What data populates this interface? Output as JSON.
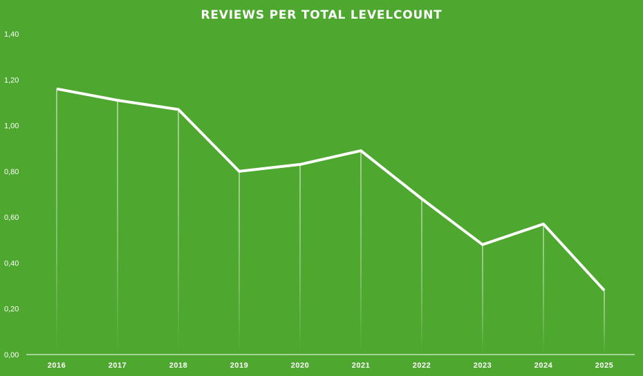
{
  "chart_data": {
    "type": "line",
    "title": "REVIEWS PER TOTAL LEVELCOUNT",
    "xlabel": "",
    "ylabel": "",
    "categories": [
      "2016",
      "2017",
      "2018",
      "2019",
      "2020",
      "2021",
      "2022",
      "2023",
      "2024",
      "2025"
    ],
    "series": [
      {
        "name": "Reviews per total levelcount",
        "values": [
          1.16,
          1.11,
          1.07,
          0.8,
          0.83,
          0.89,
          0.68,
          0.48,
          0.57,
          0.28
        ]
      }
    ],
    "ylim": [
      0,
      1.4
    ],
    "yticks": [
      "0,00",
      "0,20",
      "0,40",
      "0,60",
      "0,80",
      "1,00",
      "1,20",
      "1,40"
    ],
    "grid": false,
    "drop_lines": true,
    "colors": {
      "background": "#4ea72e",
      "line": "#ffffff",
      "text": "#ffffff"
    }
  }
}
